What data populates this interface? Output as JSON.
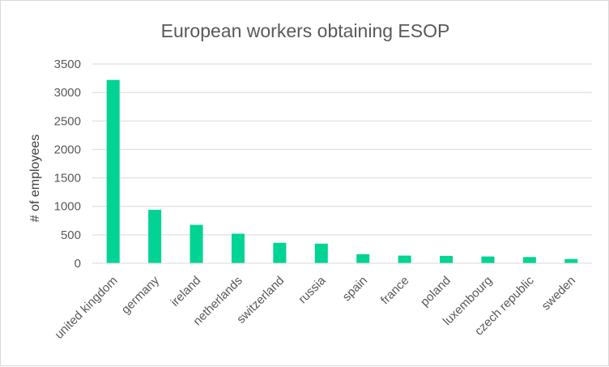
{
  "chart_data": {
    "type": "bar",
    "title": "European workers obtaining ESOP",
    "xlabel": "",
    "ylabel": "# of employees",
    "ylim": [
      0,
      3500
    ],
    "yticks": [
      0,
      500,
      1000,
      1500,
      2000,
      2500,
      3000,
      3500
    ],
    "grid": true,
    "categories": [
      "united kingdom",
      "germany",
      "ireland",
      "netherlands",
      "switzerland",
      "russia",
      "spain",
      "france",
      "poland",
      "luxembourg",
      "czech republic",
      "sweden"
    ],
    "values": [
      3220,
      940,
      675,
      520,
      360,
      345,
      160,
      135,
      130,
      120,
      110,
      75
    ],
    "bar_color": "#00d394"
  }
}
